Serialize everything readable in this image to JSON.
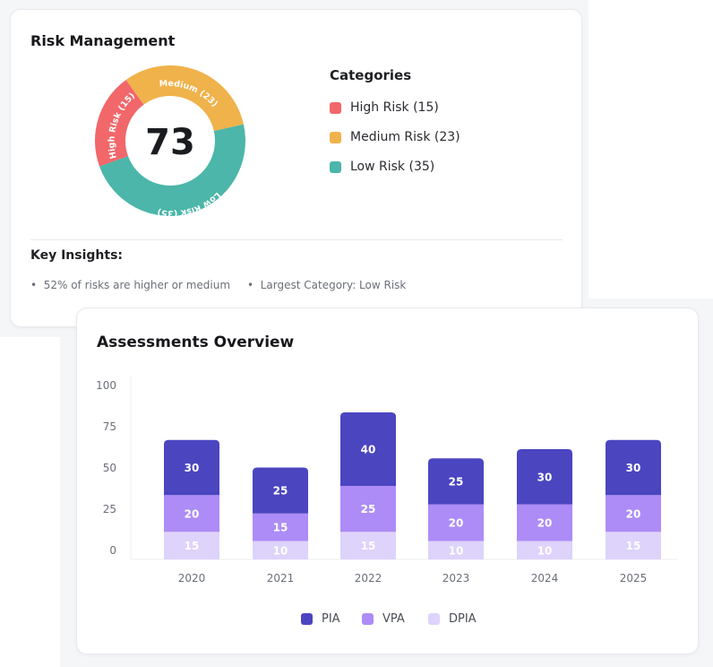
{
  "risk": {
    "title": "Risk Management",
    "total": "73",
    "legend_title": "Categories",
    "categories": [
      {
        "label": "High Risk (15)",
        "arc_label": "High Risk (15)",
        "value": 15,
        "color": "#f1676a"
      },
      {
        "label": "Medium Risk (23)",
        "arc_label": "Medium (23)",
        "value": 23,
        "color": "#f0b24a"
      },
      {
        "label": "Low Risk (35)",
        "arc_label": "Low Risk (35)",
        "value": 35,
        "color": "#4bb6a9"
      }
    ],
    "insights_title": "Key Insights:",
    "insights": [
      "52% of risks are higher or medium",
      "Largest Category: Low Risk"
    ]
  },
  "chart_data": {
    "type": "bar",
    "stacked": true,
    "title": "Assessments Overview",
    "categories": [
      "2020",
      "2021",
      "2022",
      "2023",
      "2024",
      "2025"
    ],
    "series": [
      {
        "name": "DPIA",
        "values": [
          15,
          10,
          15,
          10,
          10,
          15
        ],
        "color": "#ddd3fb"
      },
      {
        "name": "VPA",
        "values": [
          20,
          15,
          25,
          20,
          20,
          20
        ],
        "color": "#ad8cf7"
      },
      {
        "name": "PIA",
        "values": [
          30,
          25,
          40,
          25,
          30,
          30
        ],
        "color": "#4b45c0"
      }
    ],
    "yticks": [
      "0",
      "25",
      "50",
      "75",
      "100"
    ],
    "ylim": [
      0,
      100
    ],
    "legend": "bottom"
  }
}
